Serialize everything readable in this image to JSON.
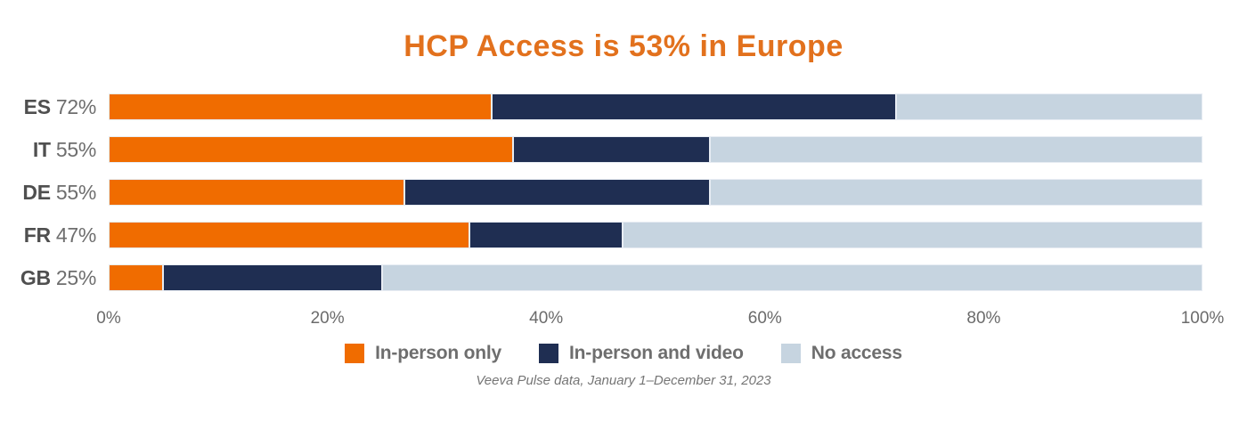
{
  "title": {
    "text": "HCP Access is 53% in Europe",
    "color": "#e2711d"
  },
  "chart_data": {
    "type": "bar",
    "orientation": "horizontal",
    "stacked": true,
    "title": "HCP Access is 53% in Europe",
    "categories": [
      "ES",
      "IT",
      "DE",
      "FR",
      "GB"
    ],
    "category_totals": [
      "72%",
      "55%",
      "55%",
      "47%",
      "25%"
    ],
    "series": [
      {
        "name": "In-person only",
        "color": "#f06c00",
        "values": [
          35,
          37,
          27,
          33,
          5
        ]
      },
      {
        "name": "In-person and video",
        "color": "#1f2e52",
        "values": [
          37,
          18,
          28,
          14,
          20
        ]
      },
      {
        "name": "No access",
        "color": "#c6d4e0",
        "values": [
          28,
          45,
          45,
          53,
          75
        ]
      }
    ],
    "x_ticks": [
      {
        "label": "0%",
        "value": 0
      },
      {
        "label": "20%",
        "value": 20
      },
      {
        "label": "40%",
        "value": 40
      },
      {
        "label": "60%",
        "value": 60
      },
      {
        "label": "80%",
        "value": 80
      },
      {
        "label": "100%",
        "value": 100
      }
    ],
    "xlim": [
      0,
      100
    ],
    "grid": false,
    "legend_position": "bottom"
  },
  "footer": {
    "text": "Veeva Pulse data, January 1–December 31, 2023"
  }
}
